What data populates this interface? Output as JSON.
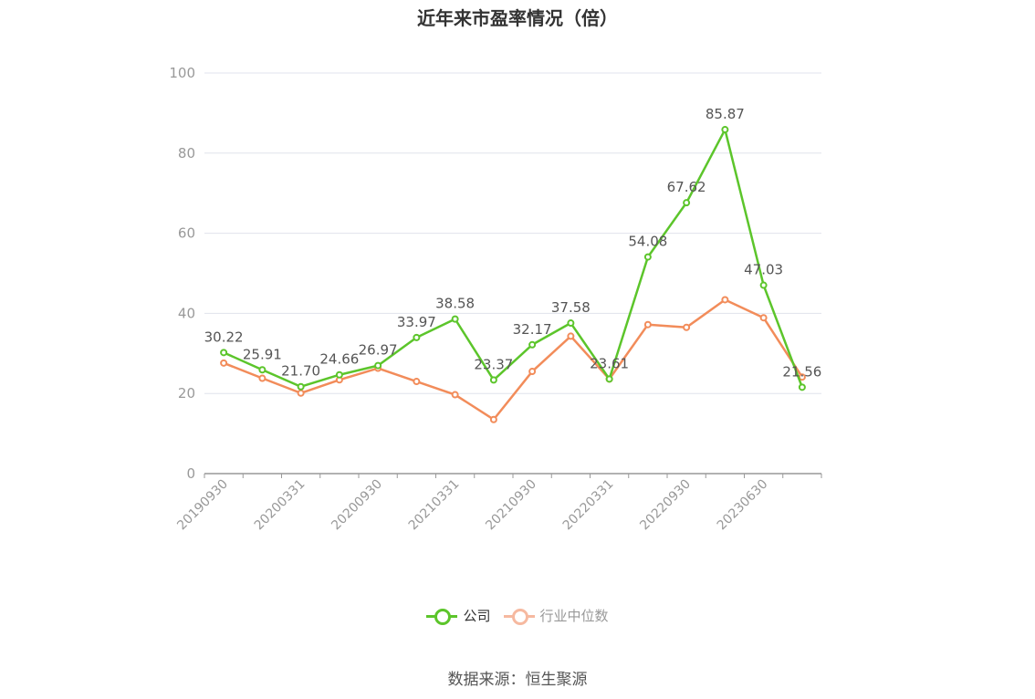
{
  "title": "近年来市盈率情况（倍）",
  "source": "数据来源：恒生聚源",
  "colors": {
    "company": "#5cc52b",
    "industry": "#f28c5a",
    "industry_legend": "#f6b9a0",
    "axis": "#999999",
    "grid": "#e0e3ec",
    "label": "#555555"
  },
  "chart_data": {
    "type": "line",
    "title": "近年来市盈率情况（倍）",
    "x_labels": [
      "20190930",
      "20200331",
      "20200930",
      "20210331",
      "20210930",
      "20220331",
      "20220930",
      "20230630"
    ],
    "x": [
      "20190930",
      "20191231",
      "20200331",
      "20200630",
      "20200930",
      "20201231",
      "20210331",
      "20210630",
      "20210930",
      "20211231",
      "20220331",
      "20220630",
      "20220930",
      "20221231",
      "20230331",
      "20230630"
    ],
    "ylim": [
      0,
      100
    ],
    "yticks": [
      0,
      20,
      40,
      60,
      80,
      100
    ],
    "grid": true,
    "legend_position": "bottom",
    "series": [
      {
        "name": "公司",
        "values": [
          30.22,
          25.91,
          21.7,
          24.66,
          26.97,
          33.97,
          38.58,
          23.37,
          32.17,
          37.58,
          23.61,
          54.08,
          67.62,
          85.87,
          47.03,
          21.56
        ],
        "labels": [
          "30.22",
          "25.91",
          "21.70",
          "24.66",
          "26.97",
          "33.97",
          "38.58",
          "23.37",
          "32.17",
          "37.58",
          "23.61",
          "54.08",
          "67.62",
          "85.87",
          "47.03",
          "21.56"
        ]
      },
      {
        "name": "行业中位数",
        "values": [
          27.6,
          23.8,
          20.1,
          23.4,
          26.3,
          23.0,
          19.7,
          13.5,
          25.5,
          34.3,
          23.6,
          37.2,
          36.5,
          43.4,
          38.9,
          24.1
        ]
      }
    ]
  }
}
